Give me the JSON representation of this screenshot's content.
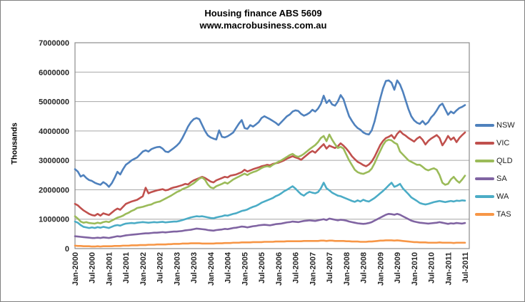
{
  "window": {
    "title": "Housing finance ABS 5609"
  },
  "colors": {
    "background": "#FFFFFF",
    "outer_border": "#808080",
    "plot_border": "#8C8C8C",
    "gridline": "#A6A6A6",
    "axis_text": "#262626",
    "title_text": "#000000"
  },
  "chart_data": {
    "type": "line",
    "title": "Housing finance ABS 5609",
    "subtitle": "www.macrobusiness.com.au",
    "xlabel": "",
    "ylabel": "Thousands",
    "ylim": [
      0,
      7000000
    ],
    "yticks": [
      0,
      1000000,
      2000000,
      3000000,
      4000000,
      5000000,
      6000000,
      7000000
    ],
    "grid": "horizontal",
    "legend_position": "right",
    "x_unit": "month",
    "x_start": "Jan-2000",
    "x_end": "Jul-2011",
    "x_points": 139,
    "x_tick_every_points": 6,
    "x_tick_labels": [
      "Jan-2000",
      "Jul-2000",
      "Jan-2001",
      "Jul-2001",
      "Jan-2002",
      "Jul-2002",
      "Jan-2003",
      "Jul-2003",
      "Jan-2004",
      "Jul-2004",
      "Jan-2005",
      "Jul-2005",
      "Jan-2006",
      "Jul-2006",
      "Jan-2007",
      "Jul-2007",
      "Jan-2008",
      "Jul-2008",
      "Jan-2009",
      "Jul-2009",
      "Jan-2010",
      "Jul-2010",
      "Jan-2011",
      "Jul-2011"
    ],
    "value_scale": 1000000,
    "series": [
      {
        "name": "NSW",
        "color": "#4F81BD",
        "values_in_millions": [
          2.7,
          2.62,
          2.45,
          2.5,
          2.4,
          2.33,
          2.3,
          2.24,
          2.2,
          2.17,
          2.26,
          2.2,
          2.1,
          2.22,
          2.4,
          2.61,
          2.52,
          2.7,
          2.85,
          2.92,
          3.0,
          3.05,
          3.1,
          3.2,
          3.3,
          3.34,
          3.3,
          3.38,
          3.42,
          3.45,
          3.46,
          3.4,
          3.3,
          3.28,
          3.35,
          3.42,
          3.5,
          3.6,
          3.76,
          3.95,
          4.15,
          4.3,
          4.4,
          4.44,
          4.4,
          4.2,
          4.0,
          3.85,
          3.78,
          3.74,
          3.71,
          4.02,
          3.8,
          3.78,
          3.82,
          3.88,
          3.95,
          4.1,
          4.25,
          4.37,
          4.1,
          4.07,
          4.2,
          4.15,
          4.22,
          4.3,
          4.44,
          4.5,
          4.45,
          4.4,
          4.34,
          4.28,
          4.2,
          4.3,
          4.4,
          4.5,
          4.56,
          4.66,
          4.7,
          4.68,
          4.58,
          4.52,
          4.56,
          4.62,
          4.72,
          4.66,
          4.76,
          4.92,
          5.2,
          4.95,
          5.05,
          4.9,
          4.86,
          5.0,
          5.22,
          5.08,
          4.78,
          4.5,
          4.34,
          4.2,
          4.1,
          4.04,
          3.95,
          3.9,
          3.88,
          4.02,
          4.32,
          4.72,
          5.1,
          5.45,
          5.7,
          5.72,
          5.64,
          5.4,
          5.72,
          5.58,
          5.34,
          5.04,
          4.74,
          4.5,
          4.36,
          4.28,
          4.24,
          4.34,
          4.22,
          4.3,
          4.46,
          4.56,
          4.7,
          4.86,
          4.93,
          4.74,
          4.55,
          4.66,
          4.6,
          4.7,
          4.78,
          4.82,
          4.88
        ]
      },
      {
        "name": "VIC",
        "color": "#C0504D",
        "values_in_millions": [
          1.52,
          1.47,
          1.38,
          1.3,
          1.24,
          1.18,
          1.14,
          1.12,
          1.18,
          1.12,
          1.2,
          1.17,
          1.14,
          1.22,
          1.3,
          1.36,
          1.32,
          1.42,
          1.52,
          1.56,
          1.6,
          1.63,
          1.66,
          1.72,
          1.78,
          2.07,
          1.88,
          1.92,
          1.95,
          1.98,
          2.0,
          2.02,
          1.98,
          2.0,
          2.05,
          2.08,
          2.1,
          2.13,
          2.16,
          2.2,
          2.18,
          2.26,
          2.32,
          2.36,
          2.4,
          2.44,
          2.4,
          2.34,
          2.28,
          2.25,
          2.32,
          2.36,
          2.4,
          2.44,
          2.42,
          2.48,
          2.5,
          2.52,
          2.56,
          2.6,
          2.68,
          2.62,
          2.66,
          2.7,
          2.73,
          2.76,
          2.8,
          2.82,
          2.85,
          2.83,
          2.88,
          2.9,
          2.92,
          2.96,
          3.0,
          3.06,
          3.1,
          3.14,
          3.1,
          3.07,
          3.02,
          3.1,
          3.18,
          3.26,
          3.32,
          3.26,
          3.36,
          3.46,
          3.55,
          3.4,
          3.5,
          3.46,
          3.42,
          3.48,
          3.58,
          3.5,
          3.4,
          3.28,
          3.14,
          3.04,
          2.95,
          2.9,
          2.84,
          2.8,
          2.86,
          2.96,
          3.12,
          3.32,
          3.52,
          3.66,
          3.76,
          3.8,
          3.86,
          3.74,
          3.9,
          4.0,
          3.9,
          3.84,
          3.76,
          3.7,
          3.64,
          3.74,
          3.8,
          3.7,
          3.54,
          3.66,
          3.74,
          3.8,
          3.86,
          3.76,
          3.51,
          3.65,
          3.83,
          3.7,
          3.78,
          3.62,
          3.76,
          3.86,
          3.95
        ]
      },
      {
        "name": "QLD",
        "color": "#9BBB59",
        "values_in_millions": [
          1.1,
          1.02,
          0.92,
          0.88,
          0.9,
          0.87,
          0.86,
          0.85,
          0.88,
          0.86,
          0.9,
          0.92,
          0.9,
          0.95,
          1.0,
          1.05,
          1.08,
          1.12,
          1.18,
          1.22,
          1.28,
          1.32,
          1.38,
          1.4,
          1.42,
          1.45,
          1.48,
          1.5,
          1.55,
          1.58,
          1.6,
          1.65,
          1.7,
          1.75,
          1.8,
          1.86,
          1.92,
          1.96,
          2.02,
          2.06,
          2.1,
          2.16,
          2.22,
          2.3,
          2.38,
          2.42,
          2.34,
          2.18,
          2.08,
          2.05,
          2.12,
          2.16,
          2.2,
          2.25,
          2.21,
          2.28,
          2.35,
          2.4,
          2.45,
          2.5,
          2.55,
          2.5,
          2.56,
          2.6,
          2.63,
          2.68,
          2.74,
          2.78,
          2.8,
          2.78,
          2.85,
          2.9,
          2.95,
          3.0,
          3.06,
          3.12,
          3.18,
          3.22,
          3.15,
          3.12,
          3.16,
          3.22,
          3.3,
          3.38,
          3.45,
          3.52,
          3.62,
          3.76,
          3.83,
          3.65,
          3.88,
          3.7,
          3.55,
          3.42,
          3.46,
          3.4,
          3.2,
          3.0,
          2.84,
          2.68,
          2.6,
          2.56,
          2.54,
          2.58,
          2.62,
          2.72,
          2.9,
          3.12,
          3.32,
          3.52,
          3.66,
          3.7,
          3.68,
          3.6,
          3.55,
          3.3,
          3.2,
          3.1,
          3.0,
          2.95,
          2.9,
          2.85,
          2.85,
          2.78,
          2.7,
          2.66,
          2.7,
          2.73,
          2.68,
          2.5,
          2.24,
          2.17,
          2.2,
          2.35,
          2.44,
          2.32,
          2.24,
          2.35,
          2.48
        ]
      },
      {
        "name": "SA",
        "color": "#8064A2",
        "values_in_millions": [
          0.42,
          0.41,
          0.4,
          0.39,
          0.38,
          0.37,
          0.36,
          0.36,
          0.37,
          0.36,
          0.38,
          0.37,
          0.36,
          0.38,
          0.4,
          0.42,
          0.41,
          0.43,
          0.45,
          0.46,
          0.47,
          0.48,
          0.49,
          0.5,
          0.51,
          0.52,
          0.52,
          0.53,
          0.54,
          0.54,
          0.55,
          0.56,
          0.55,
          0.56,
          0.57,
          0.58,
          0.58,
          0.59,
          0.6,
          0.62,
          0.63,
          0.64,
          0.66,
          0.68,
          0.67,
          0.66,
          0.65,
          0.63,
          0.62,
          0.61,
          0.63,
          0.64,
          0.65,
          0.67,
          0.66,
          0.68,
          0.7,
          0.71,
          0.73,
          0.75,
          0.74,
          0.72,
          0.74,
          0.76,
          0.77,
          0.79,
          0.8,
          0.81,
          0.8,
          0.79,
          0.81,
          0.83,
          0.84,
          0.85,
          0.87,
          0.89,
          0.9,
          0.92,
          0.91,
          0.9,
          0.92,
          0.94,
          0.95,
          0.96,
          0.95,
          0.94,
          0.96,
          0.98,
          1.0,
          0.97,
          1.02,
          1.0,
          0.98,
          0.96,
          0.98,
          0.97,
          0.95,
          0.92,
          0.9,
          0.88,
          0.86,
          0.85,
          0.84,
          0.85,
          0.87,
          0.9,
          0.95,
          1.0,
          1.05,
          1.1,
          1.15,
          1.18,
          1.17,
          1.15,
          1.18,
          1.15,
          1.1,
          1.05,
          1.0,
          0.95,
          0.92,
          0.9,
          0.88,
          0.87,
          0.86,
          0.85,
          0.86,
          0.87,
          0.88,
          0.9,
          0.88,
          0.86,
          0.84,
          0.86,
          0.85,
          0.87,
          0.86,
          0.85,
          0.87
        ]
      },
      {
        "name": "WA",
        "color": "#4BACC6",
        "values_in_millions": [
          0.92,
          0.88,
          0.8,
          0.74,
          0.72,
          0.7,
          0.72,
          0.7,
          0.73,
          0.71,
          0.74,
          0.72,
          0.7,
          0.74,
          0.78,
          0.8,
          0.78,
          0.82,
          0.85,
          0.86,
          0.87,
          0.86,
          0.88,
          0.89,
          0.9,
          0.89,
          0.88,
          0.89,
          0.9,
          0.89,
          0.9,
          0.91,
          0.89,
          0.9,
          0.91,
          0.92,
          0.92,
          0.94,
          0.97,
          1.0,
          1.03,
          1.06,
          1.08,
          1.1,
          1.09,
          1.1,
          1.08,
          1.06,
          1.04,
          1.03,
          1.06,
          1.08,
          1.1,
          1.13,
          1.12,
          1.15,
          1.18,
          1.2,
          1.24,
          1.28,
          1.3,
          1.33,
          1.38,
          1.42,
          1.45,
          1.5,
          1.56,
          1.6,
          1.64,
          1.68,
          1.72,
          1.78,
          1.82,
          1.88,
          1.95,
          2.0,
          2.06,
          2.12,
          2.04,
          1.94,
          1.85,
          1.8,
          1.88,
          1.93,
          1.9,
          1.88,
          1.92,
          2.05,
          2.24,
          2.05,
          1.98,
          1.9,
          1.85,
          1.8,
          1.78,
          1.74,
          1.7,
          1.66,
          1.62,
          1.59,
          1.64,
          1.6,
          1.66,
          1.62,
          1.6,
          1.66,
          1.72,
          1.8,
          1.88,
          1.96,
          2.05,
          2.15,
          2.24,
          2.1,
          2.14,
          2.2,
          2.05,
          1.95,
          1.85,
          1.74,
          1.68,
          1.62,
          1.55,
          1.52,
          1.5,
          1.52,
          1.55,
          1.58,
          1.6,
          1.62,
          1.6,
          1.58,
          1.6,
          1.62,
          1.6,
          1.63,
          1.62,
          1.64,
          1.63
        ]
      },
      {
        "name": "TAS",
        "color": "#F79646",
        "values_in_millions": [
          0.1,
          0.09,
          0.09,
          0.08,
          0.08,
          0.08,
          0.07,
          0.07,
          0.08,
          0.07,
          0.08,
          0.08,
          0.08,
          0.08,
          0.09,
          0.09,
          0.09,
          0.1,
          0.1,
          0.1,
          0.11,
          0.11,
          0.11,
          0.12,
          0.12,
          0.12,
          0.13,
          0.13,
          0.13,
          0.14,
          0.14,
          0.14,
          0.14,
          0.15,
          0.15,
          0.16,
          0.16,
          0.16,
          0.17,
          0.17,
          0.17,
          0.18,
          0.18,
          0.18,
          0.18,
          0.17,
          0.17,
          0.17,
          0.17,
          0.17,
          0.18,
          0.18,
          0.18,
          0.19,
          0.19,
          0.19,
          0.2,
          0.2,
          0.2,
          0.21,
          0.21,
          0.21,
          0.21,
          0.22,
          0.22,
          0.22,
          0.22,
          0.23,
          0.23,
          0.23,
          0.23,
          0.24,
          0.24,
          0.24,
          0.24,
          0.25,
          0.25,
          0.25,
          0.25,
          0.25,
          0.25,
          0.26,
          0.26,
          0.26,
          0.26,
          0.26,
          0.26,
          0.27,
          0.27,
          0.26,
          0.27,
          0.27,
          0.26,
          0.26,
          0.26,
          0.26,
          0.25,
          0.25,
          0.24,
          0.24,
          0.24,
          0.23,
          0.23,
          0.23,
          0.24,
          0.24,
          0.25,
          0.26,
          0.27,
          0.27,
          0.28,
          0.28,
          0.28,
          0.27,
          0.28,
          0.27,
          0.26,
          0.25,
          0.24,
          0.23,
          0.22,
          0.22,
          0.21,
          0.21,
          0.21,
          0.2,
          0.2,
          0.2,
          0.2,
          0.21,
          0.2,
          0.2,
          0.2,
          0.2,
          0.19,
          0.2,
          0.2,
          0.2,
          0.2
        ]
      }
    ]
  }
}
